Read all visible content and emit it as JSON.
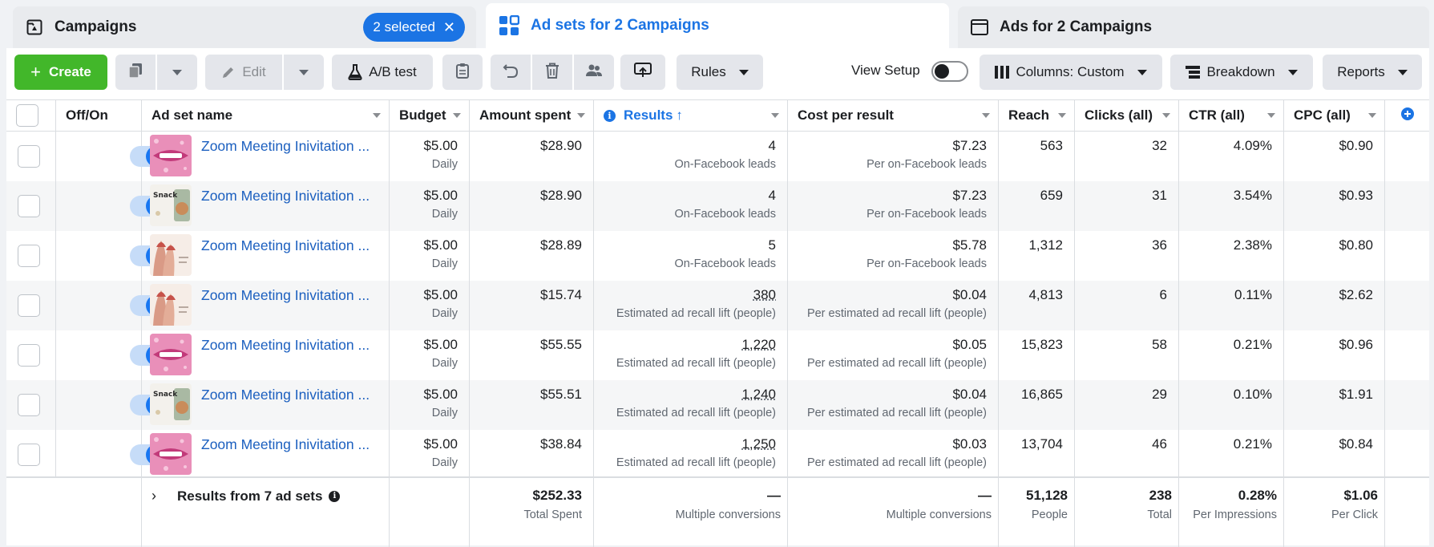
{
  "tabs": {
    "campaigns": {
      "label": "Campaigns",
      "selected_badge": "2 selected"
    },
    "adsets": {
      "label": "Ad sets for 2 Campaigns"
    },
    "ads": {
      "label": "Ads for 2 Campaigns"
    }
  },
  "toolbar": {
    "create_label": "Create",
    "edit_label": "Edit",
    "ab_test_label": "A/B test",
    "rules_label": "Rules",
    "view_setup_label": "View Setup",
    "columns_label": "Columns: Custom",
    "breakdown_label": "Breakdown",
    "reports_label": "Reports"
  },
  "columns": {
    "off_on": "Off/On",
    "ad_set_name": "Ad set name",
    "budget": "Budget",
    "amount_spent": "Amount spent",
    "results": "Results",
    "cost_per_result": "Cost per result",
    "reach": "Reach",
    "clicks": "Clicks (all)",
    "ctr": "CTR (all)",
    "cpc": "CPC (all)"
  },
  "rows": [
    {
      "name": "Zoom Meeting Inivitation ...",
      "thumb": "lips",
      "budget": "$5.00",
      "budget_sub": "Daily",
      "spent": "$28.90",
      "results": "4",
      "results_sub": "On-Facebook leads",
      "cpr": "$7.23",
      "cpr_sub": "Per on-Facebook leads",
      "reach": "563",
      "clicks": "32",
      "ctr": "4.09%",
      "cpc": "$0.90"
    },
    {
      "name": "Zoom Meeting Inivitation ...",
      "thumb": "snack",
      "budget": "$5.00",
      "budget_sub": "Daily",
      "spent": "$28.90",
      "results": "4",
      "results_sub": "On-Facebook leads",
      "cpr": "$7.23",
      "cpr_sub": "Per on-Facebook leads",
      "reach": "659",
      "clicks": "31",
      "ctr": "3.54%",
      "cpc": "$0.93"
    },
    {
      "name": "Zoom Meeting Inivitation ...",
      "thumb": "nails",
      "budget": "$5.00",
      "budget_sub": "Daily",
      "spent": "$28.89",
      "results": "5",
      "results_sub": "On-Facebook leads",
      "cpr": "$5.78",
      "cpr_sub": "Per on-Facebook leads",
      "reach": "1,312",
      "clicks": "36",
      "ctr": "2.38%",
      "cpc": "$0.80"
    },
    {
      "name": "Zoom Meeting Inivitation ...",
      "thumb": "nails",
      "budget": "$5.00",
      "budget_sub": "Daily",
      "spent": "$15.74",
      "results": "380",
      "results_sub": "Estimated ad recall lift (people)",
      "cpr": "$0.04",
      "cpr_sub": "Per estimated ad recall lift (people)",
      "reach": "4,813",
      "clicks": "6",
      "ctr": "0.11%",
      "cpc": "$2.62"
    },
    {
      "name": "Zoom Meeting Inivitation ...",
      "thumb": "lips",
      "budget": "$5.00",
      "budget_sub": "Daily",
      "spent": "$55.55",
      "results": "1,220",
      "results_sub": "Estimated ad recall lift (people)",
      "cpr": "$0.05",
      "cpr_sub": "Per estimated ad recall lift (people)",
      "reach": "15,823",
      "clicks": "58",
      "ctr": "0.21%",
      "cpc": "$0.96"
    },
    {
      "name": "Zoom Meeting Inivitation ...",
      "thumb": "snack",
      "budget": "$5.00",
      "budget_sub": "Daily",
      "spent": "$55.51",
      "results": "1,240",
      "results_sub": "Estimated ad recall lift (people)",
      "cpr": "$0.04",
      "cpr_sub": "Per estimated ad recall lift (people)",
      "reach": "16,865",
      "clicks": "29",
      "ctr": "0.10%",
      "cpc": "$1.91"
    },
    {
      "name": "Zoom Meeting Inivitation ...",
      "thumb": "lips",
      "budget": "$5.00",
      "budget_sub": "Daily",
      "spent": "$38.84",
      "results": "1,250",
      "results_sub": "Estimated ad recall lift (people)",
      "cpr": "$0.03",
      "cpr_sub": "Per estimated ad recall lift (people)",
      "reach": "13,704",
      "clicks": "46",
      "ctr": "0.21%",
      "cpc": "$0.84"
    }
  ],
  "footer": {
    "label": "Results from 7 ad sets",
    "spent": "$252.33",
    "spent_sub": "Total Spent",
    "results": "—",
    "results_sub": "Multiple conversions",
    "cpr": "—",
    "cpr_sub": "Multiple conversions",
    "reach": "51,128",
    "reach_sub": "People",
    "clicks": "238",
    "clicks_sub": "Total",
    "ctr": "0.28%",
    "ctr_sub": "Per Impressions",
    "cpc": "$1.06",
    "cpc_sub": "Per Click"
  },
  "colors": {
    "accent": "#1b74e4",
    "create": "#42b72a",
    "toggle_on": "#1877f2"
  },
  "icons": [
    "campaign-icon",
    "adsets-grid-icon",
    "ads-window-icon",
    "duplicate-icon",
    "pencil-icon",
    "flask-icon",
    "clipboard-icon",
    "undo-icon",
    "trash-icon",
    "people-icon",
    "preview-icon",
    "columns-icon",
    "breakdown-icon",
    "plus-circle-icon",
    "info-icon"
  ]
}
